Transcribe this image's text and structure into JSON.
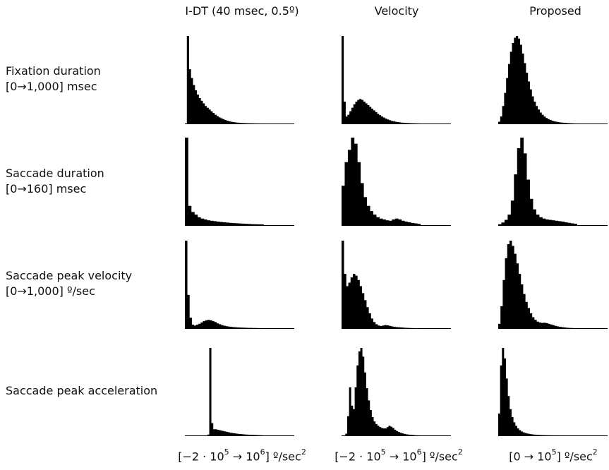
{
  "figure": {
    "column_titles": [
      "I-DT (40 msec, 0.5º)",
      "Velocity",
      "Proposed"
    ],
    "row_labels": [
      {
        "name": "Fixation duration",
        "range": "[0→1,000] msec"
      },
      {
        "name": "Saccade duration",
        "range": "[0→160] msec"
      },
      {
        "name": "Saccade peak velocity",
        "range": "[0→1,000] º/sec"
      },
      {
        "name": "Saccade peak acceleration",
        "range": ""
      }
    ],
    "bottom_axis_notes": [
      {
        "prefix": "[−2 · 10",
        "exp1": "5",
        "mid": " → 10",
        "exp2": "6",
        "suffix": "] º/sec",
        "exp3": "2"
      },
      {
        "prefix": "[−2 · 10",
        "exp1": "5",
        "mid": " → 10",
        "exp2": "6",
        "suffix": "] º/sec",
        "exp3": "2"
      },
      {
        "prefix": "[0 → 10",
        "exp1": "5",
        "mid": "",
        "exp2": "",
        "suffix": "] º/sec",
        "exp3": "2"
      }
    ],
    "bar_color": "#000000"
  },
  "chart_data": [
    {
      "type": "bar",
      "row": "Fixation duration",
      "column": "I-DT (40 msec, 0.5º)",
      "x_range": [
        0,
        1000
      ],
      "x_unit": "msec",
      "values": [
        0,
        100,
        62,
        52,
        44,
        38,
        33,
        29,
        26,
        23,
        20,
        18,
        16,
        14,
        12,
        10,
        8.5,
        7,
        6,
        5,
        4,
        3.2,
        2.6,
        2,
        1.6,
        1.3,
        1,
        0.8,
        0.6,
        0.5,
        0.4,
        0.3,
        0.25,
        0.2,
        0.15,
        0.1,
        0.08,
        0.05,
        0.03,
        0.02
      ]
    },
    {
      "type": "bar",
      "row": "Fixation duration",
      "column": "Velocity",
      "x_range": [
        0,
        1000
      ],
      "x_unit": "msec",
      "values": [
        100,
        25,
        8,
        10,
        14,
        18,
        22,
        25,
        27,
        28,
        27,
        25,
        23,
        21,
        19,
        17,
        15,
        13,
        11,
        9.5,
        8,
        6.8,
        5.6,
        4.6,
        3.8,
        3,
        2.5,
        2,
        1.6,
        1.3,
        1,
        0.8,
        0.6,
        0.5,
        0.4,
        0.3,
        0.2,
        0.15,
        0.1,
        0.05
      ]
    },
    {
      "type": "bar",
      "row": "Fixation duration",
      "column": "Proposed",
      "x_range": [
        0,
        1000
      ],
      "x_unit": "msec",
      "values": [
        2,
        8,
        20,
        35,
        52,
        68,
        82,
        92,
        98,
        100,
        97,
        90,
        80,
        69,
        58,
        48,
        39,
        31,
        25,
        20,
        16,
        12.5,
        10,
        8,
        6.3,
        5,
        4,
        3.2,
        2.5,
        2,
        1.6,
        1.2,
        1,
        0.8,
        0.6,
        0.4,
        0.3,
        0.2,
        0.1,
        0.05
      ]
    },
    {
      "type": "bar",
      "row": "Saccade duration",
      "column": "I-DT (40 msec, 0.5º)",
      "x_range": [
        0,
        160
      ],
      "x_unit": "msec",
      "values": [
        100,
        22,
        15,
        12,
        9,
        7.5,
        6.5,
        5.5,
        5,
        4.5,
        4,
        3.6,
        3.2,
        2.9,
        2.6,
        2.3,
        2.1,
        1.9,
        1.7,
        1.5,
        1.3,
        1.1,
        1,
        0.9,
        0.8
      ]
    },
    {
      "type": "bar",
      "row": "Saccade duration",
      "column": "Velocity",
      "x_range": [
        0,
        160
      ],
      "x_unit": "msec",
      "values": [
        45,
        72,
        86,
        100,
        93,
        72,
        48,
        32,
        22,
        16,
        12,
        9,
        7.5,
        6.5,
        5.5,
        5,
        6.5,
        7.5,
        6.5,
        5,
        4,
        3.2,
        2.5,
        2,
        1.5
      ]
    },
    {
      "type": "bar",
      "row": "Saccade duration",
      "column": "Proposed",
      "x_range": [
        0,
        160
      ],
      "x_unit": "msec",
      "values": [
        1,
        3,
        6,
        12,
        28,
        58,
        88,
        100,
        82,
        52,
        30,
        18,
        12,
        9,
        7.5,
        6.5,
        6,
        5.5,
        5,
        4.5,
        4,
        3.2,
        2.6,
        2,
        1.5
      ]
    },
    {
      "type": "bar",
      "row": "Saccade peak velocity",
      "column": "I-DT (40 msec, 0.5º)",
      "x_range": [
        0,
        1000
      ],
      "x_unit": "º/sec",
      "values": [
        100,
        38,
        12,
        4,
        3,
        4,
        5,
        6.5,
        8,
        9,
        9.5,
        9,
        8,
        7,
        5.5,
        4.5,
        3.5,
        2.8,
        2.2,
        1.8,
        1.5,
        1.2,
        1,
        0.8,
        0.7,
        0.6,
        0.5,
        0.4,
        0.3,
        0.3,
        0.2,
        0.2,
        0.1,
        0.1,
        0.05
      ]
    },
    {
      "type": "bar",
      "row": "Saccade peak velocity",
      "column": "Velocity",
      "x_range": [
        0,
        1000
      ],
      "x_unit": "º/sec",
      "values": [
        100,
        62,
        48,
        52,
        58,
        62,
        60,
        55,
        48,
        40,
        32,
        24,
        17,
        11,
        7,
        4.5,
        3,
        2.5,
        3,
        3.5,
        3.2,
        2.6,
        2,
        1.5,
        1.2,
        1,
        0.8,
        0.6,
        0.4,
        0.3,
        0.2,
        0.1,
        0.08,
        0.05,
        0.02
      ]
    },
    {
      "type": "bar",
      "row": "Saccade peak velocity",
      "column": "Proposed",
      "x_range": [
        0,
        1000
      ],
      "x_unit": "º/sec",
      "values": [
        5,
        25,
        55,
        80,
        96,
        100,
        94,
        85,
        74,
        62,
        50,
        39,
        30,
        23,
        17,
        12.5,
        9.5,
        7.5,
        6.5,
        6,
        6.2,
        5.8,
        5,
        4.2,
        3.4,
        2.6,
        2,
        1.5,
        1.1,
        0.8,
        0.5,
        0.3,
        0.2,
        0.1,
        0.05
      ]
    },
    {
      "type": "bar",
      "row": "Saccade peak acceleration",
      "column": "I-DT (40 msec, 0.5º)",
      "x_range": [
        -200000,
        1000000
      ],
      "x_unit": "º/sec²",
      "values": [
        0,
        0,
        0,
        0,
        0,
        0,
        0,
        0,
        0,
        0,
        0,
        0,
        1,
        100,
        14,
        7,
        7,
        6.5,
        6,
        5.5,
        5,
        4.5,
        4,
        3.5,
        3,
        2.7,
        2.4,
        2.1,
        1.8,
        1.6,
        1.4,
        1.2,
        1,
        0.9,
        0.8,
        0.7,
        0.6,
        0.5,
        0.4,
        0.3,
        0.2,
        0.1
      ]
    },
    {
      "type": "bar",
      "row": "Saccade peak acceleration",
      "column": "Velocity",
      "x_range": [
        -200000,
        1000000
      ],
      "x_unit": "º/sec²",
      "values": [
        0,
        0,
        2,
        22,
        55,
        34,
        30,
        55,
        80,
        96,
        100,
        90,
        72,
        54,
        40,
        29,
        21,
        16,
        13,
        11,
        9.5,
        8.5,
        8,
        8,
        9.5,
        11,
        10,
        8.5,
        6.5,
        5,
        4,
        3,
        2.3,
        1.8,
        1.3,
        1,
        0.8,
        0.6,
        0.4,
        0.2,
        0.1,
        0.05
      ]
    },
    {
      "type": "bar",
      "row": "Saccade peak acceleration",
      "column": "Proposed",
      "x_range": [
        0,
        100000
      ],
      "x_unit": "º/sec²",
      "values": [
        25,
        80,
        100,
        88,
        65,
        45,
        30,
        21,
        15,
        11,
        8,
        6,
        4.5,
        3.5,
        2.8,
        2.2,
        1.8,
        1.4,
        1.1,
        0.9,
        0.7,
        0.55,
        0.45,
        0.35,
        0.28,
        0.22,
        0.17,
        0.13,
        0.1,
        0.08,
        0.06,
        0.05,
        0.04,
        0.03,
        0.02,
        0.02,
        0.01,
        0.01,
        0.01,
        0.01,
        0.01,
        0.01
      ]
    }
  ]
}
